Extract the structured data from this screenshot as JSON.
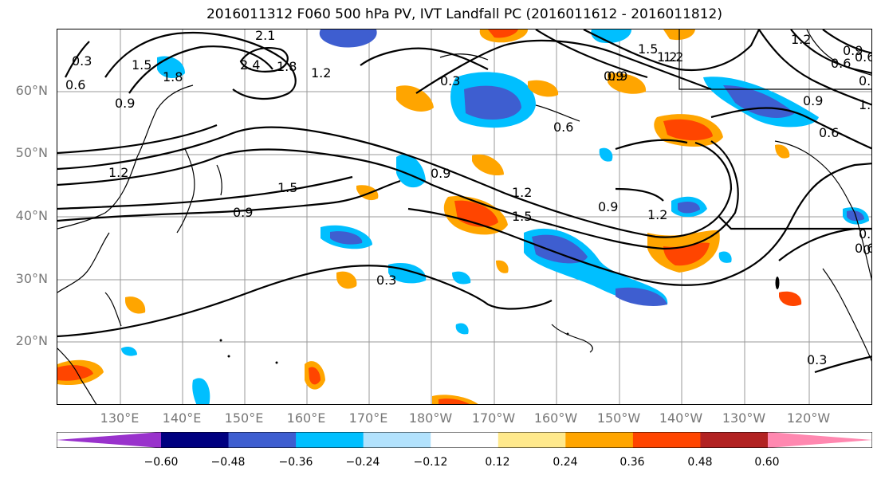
{
  "title": "2016011312 F060 500 hPa PV, IVT Landfall PC (2016011612 - 2016011812)",
  "lat_labels": [
    "60°N",
    "50°N",
    "40°N",
    "30°N",
    "20°N"
  ],
  "lon_labels": [
    "130°E",
    "140°E",
    "150°E",
    "160°E",
    "170°E",
    "180°W",
    "170°W",
    "160°W",
    "150°W",
    "140°W",
    "130°W",
    "120°W"
  ],
  "map": {
    "projection": "PlateCarree",
    "lon_range": [
      120,
      251
    ],
    "lat_range": [
      10,
      70
    ],
    "gridlines": true,
    "coastlines": true
  },
  "contour_labels": [
    "2.1",
    "2.4",
    "1.8",
    "1.5",
    "1.8",
    "1.2",
    "0.9",
    "0.6",
    "0.3",
    "1.2",
    "0.9",
    "1.5",
    "0.9",
    "0.6",
    "0.3",
    "0.9",
    "1.2",
    "1.5",
    "0.9",
    "1.2",
    "0.9",
    "0.6",
    "0.3",
    "1.5",
    "1.2",
    "0.3",
    "0.3",
    "0.6",
    "0.9",
    "0.6",
    "0.9",
    "0.6",
    "1.2",
    "1.2",
    "0.6",
    "0.6",
    "1.8"
  ],
  "colorbar": {
    "ticks": [
      "−0.60",
      "−0.48",
      "−0.36",
      "−0.24",
      "−0.12",
      "0.12",
      "0.24",
      "0.36",
      "0.48",
      "0.60"
    ],
    "colors": [
      "#9932cc",
      "#000080",
      "#3e5ed0",
      "#00bfff",
      "#b2e2fd",
      "#ffffff",
      "#ffe98c",
      "#ffa500",
      "#ff4500",
      "#b22222",
      "#ff88b0"
    ],
    "extend": "both"
  }
}
